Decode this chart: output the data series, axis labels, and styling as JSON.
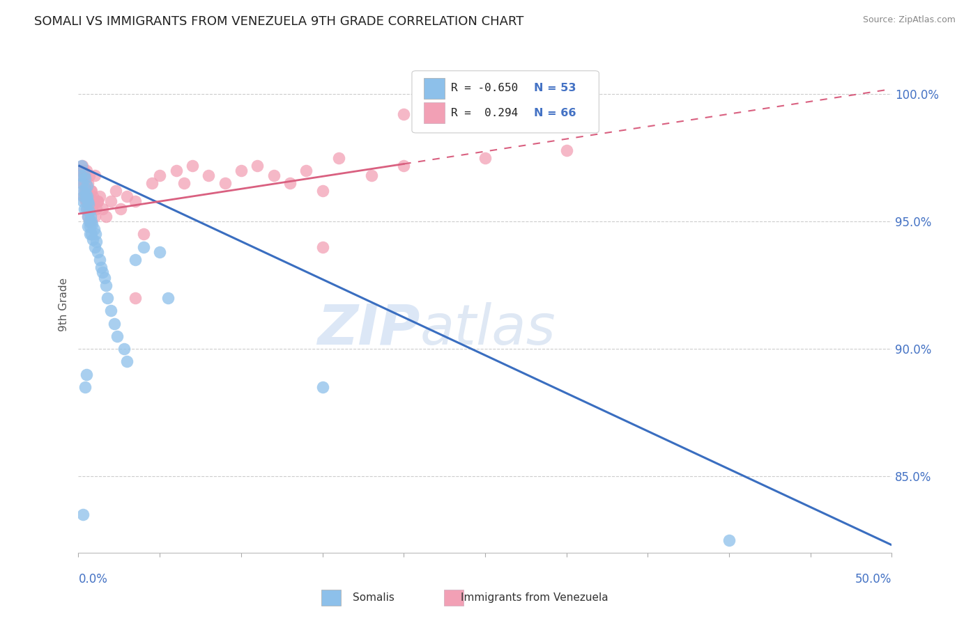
{
  "title": "SOMALI VS IMMIGRANTS FROM VENEZUELA 9TH GRADE CORRELATION CHART",
  "source": "Source: ZipAtlas.com",
  "ylabel": "9th Grade",
  "xmin": 0.0,
  "xmax": 50.0,
  "ymin": 82.0,
  "ymax": 101.5,
  "yticks": [
    85.0,
    90.0,
    95.0,
    100.0
  ],
  "ytick_labels": [
    "85.0%",
    "90.0%",
    "95.0%",
    "100.0%"
  ],
  "color_somali": "#8DC0EA",
  "color_venezuela": "#F2A0B5",
  "color_somali_line": "#3A6EC0",
  "color_venezuela_line": "#D96080",
  "color_axis_labels": "#4472C4",
  "watermark_zip": "ZIP",
  "watermark_atlas": "atlas",
  "somali_x": [
    0.15,
    0.2,
    0.25,
    0.28,
    0.3,
    0.32,
    0.35,
    0.38,
    0.4,
    0.42,
    0.45,
    0.48,
    0.5,
    0.52,
    0.55,
    0.58,
    0.6,
    0.62,
    0.65,
    0.68,
    0.7,
    0.75,
    0.8,
    0.85,
    0.9,
    0.95,
    1.0,
    1.05,
    1.1,
    1.2,
    1.3,
    1.4,
    1.5,
    1.6,
    1.7,
    1.8,
    2.0,
    2.2,
    2.4,
    2.8,
    3.0,
    3.5,
    4.0,
    0.3,
    0.4,
    0.5,
    0.6,
    0.7,
    0.8,
    5.0,
    5.5,
    15.0,
    40.0
  ],
  "somali_y": [
    96.8,
    97.2,
    96.5,
    95.8,
    96.2,
    96.0,
    95.5,
    96.8,
    96.3,
    96.7,
    96.1,
    95.9,
    95.5,
    96.4,
    96.0,
    95.8,
    95.2,
    95.7,
    95.4,
    95.0,
    94.8,
    95.2,
    94.5,
    94.9,
    94.3,
    94.7,
    94.0,
    94.5,
    94.2,
    93.8,
    93.5,
    93.2,
    93.0,
    92.8,
    92.5,
    92.0,
    91.5,
    91.0,
    90.5,
    90.0,
    89.5,
    93.5,
    94.0,
    83.5,
    88.5,
    89.0,
    94.8,
    94.5,
    95.0,
    93.8,
    92.0,
    88.5,
    82.5
  ],
  "venezuela_x": [
    0.15,
    0.2,
    0.25,
    0.3,
    0.32,
    0.35,
    0.38,
    0.4,
    0.42,
    0.45,
    0.48,
    0.5,
    0.52,
    0.55,
    0.58,
    0.6,
    0.62,
    0.65,
    0.7,
    0.75,
    0.8,
    0.85,
    0.9,
    0.95,
    1.0,
    1.1,
    1.2,
    1.3,
    1.5,
    1.7,
    2.0,
    2.3,
    2.6,
    3.0,
    3.5,
    4.0,
    4.5,
    5.0,
    6.0,
    6.5,
    7.0,
    8.0,
    9.0,
    10.0,
    11.0,
    12.0,
    13.0,
    14.0,
    15.0,
    16.0,
    18.0,
    20.0,
    25.0,
    30.0,
    0.28,
    0.45,
    0.6,
    0.75,
    1.0,
    3.5,
    15.0,
    20.0,
    0.5,
    0.65,
    0.8,
    1.2
  ],
  "venezuela_y": [
    97.0,
    96.5,
    97.2,
    96.8,
    97.0,
    96.5,
    96.2,
    96.8,
    96.0,
    96.5,
    95.8,
    96.2,
    95.5,
    96.0,
    95.8,
    95.2,
    96.0,
    95.5,
    95.0,
    95.8,
    96.2,
    95.5,
    96.0,
    95.8,
    95.2,
    95.5,
    95.8,
    96.0,
    95.5,
    95.2,
    95.8,
    96.2,
    95.5,
    96.0,
    95.8,
    94.5,
    96.5,
    96.8,
    97.0,
    96.5,
    97.2,
    96.8,
    96.5,
    97.0,
    97.2,
    96.8,
    96.5,
    97.0,
    96.2,
    97.5,
    96.8,
    97.2,
    97.5,
    97.8,
    96.0,
    95.8,
    96.5,
    96.2,
    96.8,
    92.0,
    94.0,
    99.2,
    97.0,
    96.8,
    95.5,
    95.8
  ],
  "somali_line_x0": 0.0,
  "somali_line_y0": 97.2,
  "somali_line_x1": 50.0,
  "somali_line_y1": 82.3,
  "venezuela_line_x0": 0.0,
  "venezuela_line_y0": 95.3,
  "venezuela_line_x1": 50.0,
  "venezuela_line_y1": 100.2,
  "venezuela_solid_end": 20.0,
  "legend_r_somali": "R = -0.650",
  "legend_n_somali": "N = 53",
  "legend_r_venezuela": "R =  0.294",
  "legend_n_venezuela": "N = 66"
}
